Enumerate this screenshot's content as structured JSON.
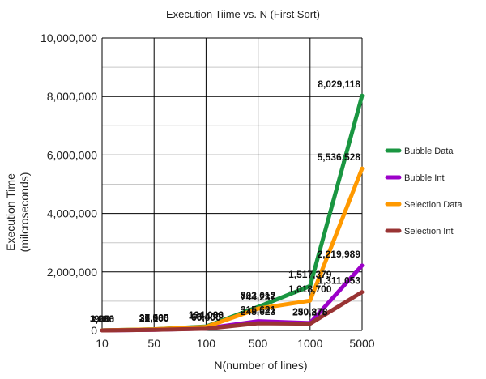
{
  "chart_data": {
    "type": "line",
    "title": "Execution Tiime vs. N (First Sort)",
    "xlabel": "N(number of lines)",
    "ylabel_lines": [
      "Execution Time",
      "(milcroseconds)"
    ],
    "categories": [
      "10",
      "50",
      "100",
      "500",
      "1000",
      "5000"
    ],
    "ylim": [
      0,
      10000000
    ],
    "yticks": [
      0,
      2000000,
      4000000,
      6000000,
      8000000,
      10000000
    ],
    "ytick_labels": [
      "0",
      "2,000,000",
      "4,000,000",
      "6,000,000",
      "8,000,000",
      "10,000,000"
    ],
    "grid": true,
    "legend_position": "right",
    "series": [
      {
        "name": "Bubble Data",
        "color": "#1a9641",
        "values": [
          3966,
          37985,
          134088,
          803012,
          1517379,
          8029118
        ],
        "labels": [
          "3,966",
          "37,985",
          "134,088",
          "803,012",
          "1,517,379",
          "8,029,118"
        ]
      },
      {
        "name": "Bubble Int",
        "color": "#9c00c9",
        "values": [
          1000,
          22100,
          66400,
          315621,
          250878,
          2219989
        ],
        "labels": [
          "1,000",
          "22,100",
          "66,400",
          "315,621",
          "250,878",
          "2,219,989"
        ]
      },
      {
        "name": "Selection Data",
        "color": "#ff9900",
        "values": [
          3900,
          36500,
          121000,
          744237,
          1018700,
          5536528
        ],
        "labels": [
          "3,900",
          "36,500",
          "121,000",
          "744,237",
          "1,018,700",
          "5,536,528"
        ]
      },
      {
        "name": "Selection Int",
        "color": "#993333",
        "values": [
          900,
          21000,
          60000,
          245623,
          230275,
          1311053
        ],
        "labels": [
          "900",
          "21,000",
          "60,000",
          "245,623",
          "230,275",
          "1,311,053"
        ]
      }
    ]
  }
}
